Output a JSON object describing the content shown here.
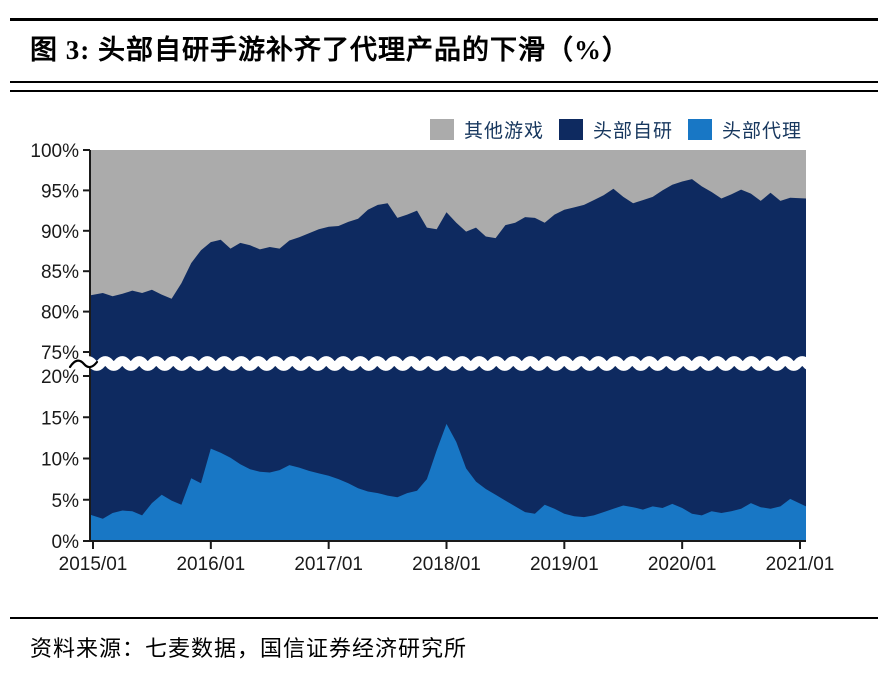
{
  "figure": {
    "title": "图 3: 头部自研手游补齐了代理产品的下滑（%）",
    "source": "资料来源：七麦数据，国信证券经济研究所"
  },
  "chart_data": {
    "type": "area",
    "stacked": true,
    "title": "头部自研手游补齐了代理产品的下滑（%）",
    "x_interval": "monthly",
    "x_start": "2015/01",
    "x_end": "2021/01",
    "x_tick_labels": [
      "2015/01",
      "2016/01",
      "2017/01",
      "2018/01",
      "2019/01",
      "2020/01",
      "2021/01"
    ],
    "broken_y_axis": {
      "lower_range": [
        0,
        20
      ],
      "upper_range": [
        75,
        100
      ]
    },
    "y_ticks_upper": {
      "labels": [
        "100%",
        "95%",
        "90%",
        "85%",
        "80%",
        "75%"
      ],
      "values": [
        100,
        95,
        90,
        85,
        80,
        75
      ]
    },
    "y_ticks_lower": {
      "labels": [
        "20%",
        "15%",
        "10%",
        "5%",
        "0%"
      ],
      "values": [
        20,
        15,
        10,
        5,
        0
      ]
    },
    "legend": [
      {
        "label": "其他游戏",
        "color": "#ababab"
      },
      {
        "label": "头部自研",
        "color": "#0e2a60"
      },
      {
        "label": "头部代理",
        "color": "#1877c5"
      }
    ],
    "series": [
      {
        "name": "头部代理",
        "color": "#1877c5",
        "values": [
          3.2,
          2.7,
          3.4,
          3.7,
          3.6,
          3.1,
          4.6,
          5.6,
          4.9,
          4.4,
          7.6,
          7.0,
          11.2,
          10.7,
          10.1,
          9.3,
          8.7,
          8.4,
          8.3,
          8.6,
          9.2,
          8.9,
          8.5,
          8.2,
          7.9,
          7.5,
          7.0,
          6.4,
          6.0,
          5.8,
          5.5,
          5.3,
          5.8,
          6.1,
          7.5,
          11.0,
          14.2,
          12.0,
          8.8,
          7.2,
          6.3,
          5.6,
          4.9,
          4.2,
          3.5,
          3.3,
          4.4,
          3.9,
          3.3,
          3.0,
          2.9,
          3.1,
          3.5,
          3.9,
          4.3,
          4.1,
          3.8,
          4.2,
          4.0,
          4.5,
          4.0,
          3.3,
          3.1,
          3.6,
          3.4,
          3.6,
          3.9,
          4.6,
          4.1,
          3.9,
          4.2,
          5.1,
          4.2
        ]
      },
      {
        "name": "头部自研",
        "color": "#0e2a60",
        "values": [
          78.8,
          79.6,
          78.5,
          78.5,
          79.0,
          79.2,
          78.1,
          76.5,
          76.7,
          79.1,
          78.4,
          80.6,
          77.4,
          78.2,
          77.7,
          79.2,
          79.5,
          79.3,
          79.7,
          79.2,
          79.6,
          80.3,
          81.2,
          82.0,
          82.6,
          83.1,
          84.1,
          85.1,
          86.6,
          87.4,
          87.9,
          86.3,
          86.2,
          86.4,
          82.9,
          79.2,
          78.1,
          79.0,
          81.1,
          83.2,
          83.0,
          83.5,
          85.8,
          86.8,
          88.2,
          88.3,
          86.6,
          88.1,
          89.3,
          89.9,
          90.3,
          90.7,
          90.9,
          91.3,
          89.9,
          89.3,
          90.0,
          90.0,
          91.0,
          91.2,
          92.1,
          93.1,
          92.4,
          91.2,
          90.6,
          90.9,
          91.2,
          90.0,
          89.6,
          90.8,
          89.5,
          89.0,
          89.8
        ]
      },
      {
        "name": "其他游戏",
        "color": "#ababab",
        "values": [
          18.0,
          17.7,
          18.1,
          17.8,
          17.4,
          17.7,
          17.3,
          17.9,
          18.4,
          16.5,
          14.0,
          12.4,
          11.4,
          11.1,
          12.2,
          11.5,
          11.8,
          12.3,
          12.0,
          12.2,
          11.2,
          10.8,
          10.3,
          9.8,
          9.5,
          9.4,
          8.9,
          8.5,
          7.4,
          6.8,
          6.6,
          8.4,
          8.0,
          7.5,
          9.6,
          9.8,
          7.7,
          9.0,
          10.1,
          9.6,
          10.7,
          10.9,
          9.3,
          9.0,
          8.3,
          8.4,
          9.0,
          8.0,
          7.4,
          7.1,
          6.8,
          6.2,
          5.6,
          4.8,
          5.8,
          6.6,
          6.2,
          5.8,
          5.0,
          4.3,
          3.9,
          3.6,
          4.5,
          5.2,
          6.0,
          5.5,
          4.9,
          5.4,
          6.3,
          5.3,
          6.3,
          5.9,
          6.0
        ]
      }
    ],
    "axis_color": "#1a1a1a",
    "break_band_color": "#ffffff"
  }
}
